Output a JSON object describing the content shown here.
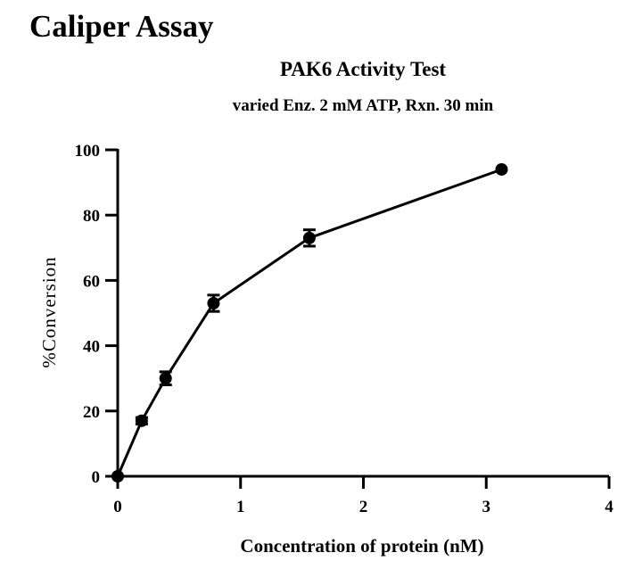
{
  "page": {
    "heading": "Caliper Assay"
  },
  "chart_data": {
    "type": "line",
    "title": "PAK6 Activity Test",
    "subtitle": "varied Enz. 2 mM ATP, Rxn. 30 min",
    "xlabel": "Concentration of protein (nM)",
    "ylabel": "%Conversion",
    "xlim": [
      0,
      4
    ],
    "ylim": [
      0,
      100
    ],
    "xticks": [
      0,
      1,
      2,
      3,
      4
    ],
    "yticks": [
      0,
      20,
      40,
      60,
      80,
      100
    ],
    "grid": false,
    "series": [
      {
        "x": [
          0,
          0.195,
          0.39,
          0.78,
          1.56,
          3.125
        ],
        "y": [
          0,
          17,
          30,
          53,
          73,
          94
        ],
        "error": [
          0,
          1,
          2,
          2.5,
          2.5,
          0
        ]
      }
    ]
  }
}
